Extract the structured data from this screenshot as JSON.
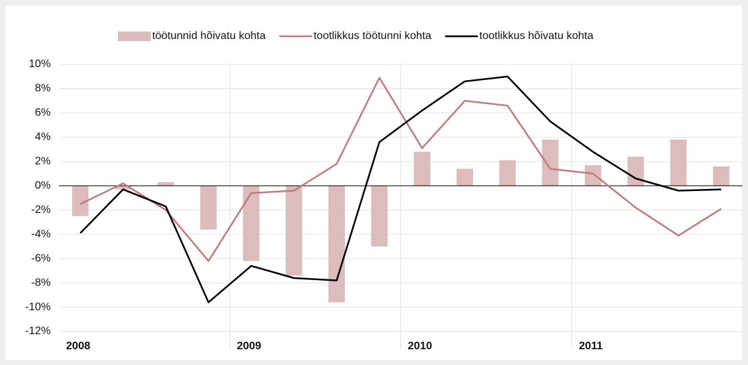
{
  "chart_data": {
    "type": "bar_line",
    "years": [
      "2008",
      "2009",
      "2010",
      "2011"
    ],
    "series": [
      {
        "name": "töötunnid hõivatu kohta",
        "kind": "bar",
        "color": "#dcbcbc",
        "values": [
          -2.5,
          -0.3,
          0.3,
          -3.6,
          -6.2,
          -7.4,
          -9.6,
          -5.0,
          2.8,
          1.4,
          2.1,
          3.8,
          1.7,
          2.4,
          3.8,
          1.6
        ]
      },
      {
        "name": "tootlikkus töötunni kohta",
        "kind": "line",
        "color": "#c07b7b",
        "values": [
          -1.5,
          0.2,
          -2.0,
          -6.2,
          -0.6,
          -0.4,
          1.8,
          8.9,
          3.1,
          7.0,
          6.6,
          1.4,
          1.0,
          -1.8,
          -4.1,
          -1.9
        ]
      },
      {
        "name": "tootlikkus hõivatu kohta",
        "kind": "line",
        "color": "#000000",
        "values": [
          -3.9,
          -0.3,
          -1.7,
          -9.6,
          -6.6,
          -7.6,
          -7.8,
          3.6,
          6.2,
          8.6,
          9.0,
          5.3,
          2.8,
          0.6,
          -0.4,
          -0.3
        ]
      }
    ],
    "ylim": [
      -12,
      10
    ],
    "yticks": [
      {
        "value": -12,
        "label": "-12%"
      },
      {
        "value": -10,
        "label": "-10%"
      },
      {
        "value": -8,
        "label": "-8%"
      },
      {
        "value": -6,
        "label": "-6%"
      },
      {
        "value": -4,
        "label": "-4%"
      },
      {
        "value": -2,
        "label": "-2%"
      },
      {
        "value": 0,
        "label": "0%"
      },
      {
        "value": 2,
        "label": "2%"
      },
      {
        "value": 4,
        "label": "4%"
      },
      {
        "value": 6,
        "label": "6%"
      },
      {
        "value": 8,
        "label": "8%"
      },
      {
        "value": 10,
        "label": "10%"
      }
    ],
    "grid": true,
    "legend": "top"
  }
}
